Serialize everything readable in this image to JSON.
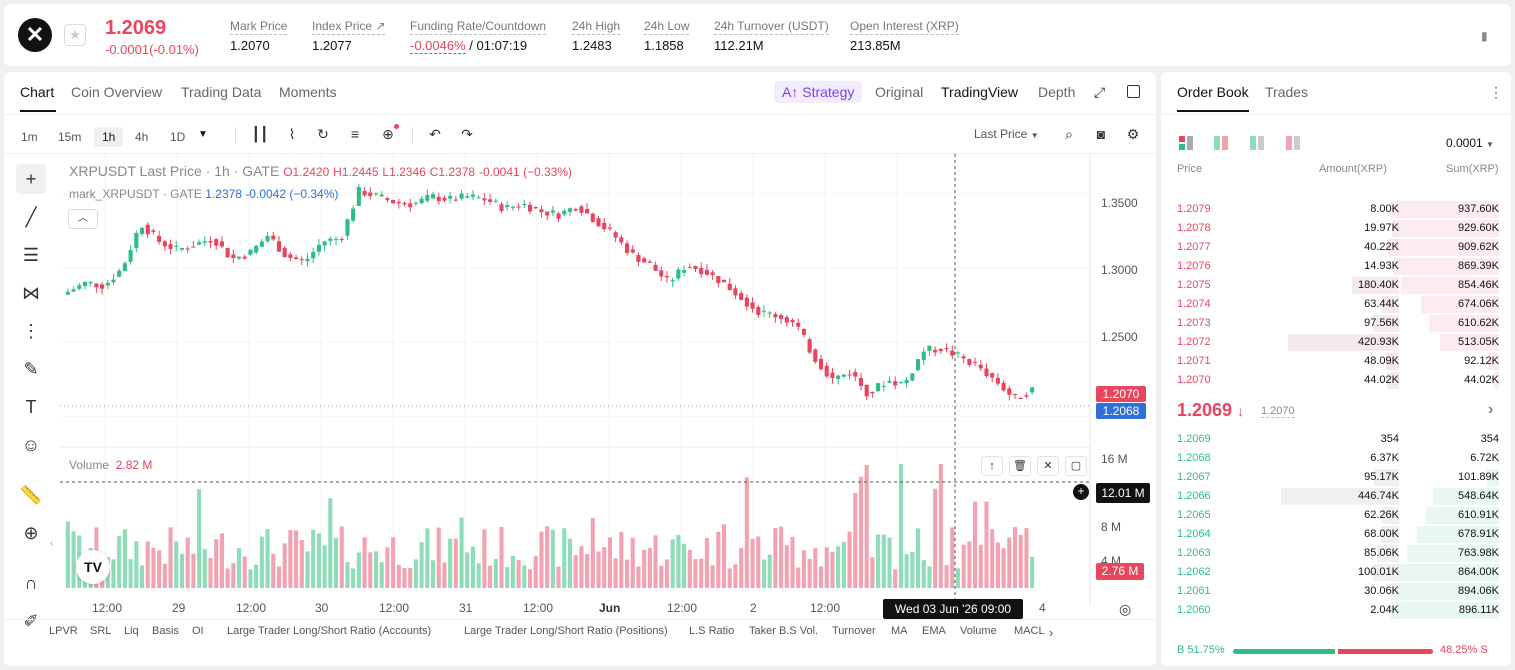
{
  "header": {
    "logo": "x-icon",
    "price": "1.2069",
    "change": "-0.0001(-0.01%)",
    "stats": [
      {
        "label": "Mark Price",
        "value": "1.2070"
      },
      {
        "label": "Index Price ↗",
        "value": "1.2077"
      },
      {
        "label": "Funding Rate/Countdown",
        "value_a": "-0.0046%",
        "value_b": "/ 01:07:19"
      },
      {
        "label": "24h High",
        "value": "1.2483"
      },
      {
        "label": "24h Low",
        "value": "1.1858"
      },
      {
        "label": "24h Turnover (USDT)",
        "value": "112.21M"
      },
      {
        "label": "Open Interest (XRP)",
        "value": "213.85M"
      }
    ]
  },
  "chart_tabs": {
    "left": [
      "Chart",
      "Coin Overview",
      "Trading Data",
      "Moments"
    ],
    "strategy": "Strategy",
    "right": [
      "Original",
      "TradingView",
      "Depth"
    ]
  },
  "timeframes": [
    "1m",
    "15m",
    "1h",
    "4h",
    "1D"
  ],
  "price_type": "Last Price",
  "legend": {
    "symbol": "XRPUSDT Last Price · 1h · GATE",
    "o": "O1.2420",
    "h": "H1.2445",
    "l": "L1.2346",
    "c": "C1.2378",
    "chg": "-0.0041 (−0.33%)",
    "mark_label": "mark_XRPUSDT · GATE",
    "mark_value": "1.2378",
    "mark_chg": "-0.0042 (−0.34%)"
  },
  "price_axis": [
    "1.3500",
    "1.3000",
    "1.2500"
  ],
  "price_tags": {
    "last": "1.2070",
    "mark": "1.2068"
  },
  "volume": {
    "label": "Volume",
    "value": "2.82 M",
    "axis": [
      "16 M",
      "8 M",
      "4 M"
    ],
    "crosshair_value": "12.01 M",
    "last_tag": "2.76 M"
  },
  "time_axis": [
    "12:00",
    "29",
    "12:00",
    "30",
    "12:00",
    "31",
    "12:00",
    "Jun",
    "12:00",
    "2",
    "12:00",
    "4"
  ],
  "crosshair_time": "Wed 03 Jun '26   09:00",
  "indicators": [
    "LPVR",
    "SRL",
    "Liq",
    "Basis",
    "OI",
    "Large Trader Long/Short Ratio (Accounts)",
    "Large Trader Long/Short Ratio (Positions)",
    "L.S Ratio",
    "Taker B.S Vol.",
    "Turnover",
    "MA",
    "EMA",
    "Volume",
    "MACL"
  ],
  "chart_data": {
    "type": "candlestick",
    "series": [
      {
        "name": "XRPUSDT",
        "approx_closes": [
          1.284,
          1.29,
          1.288,
          1.3,
          1.33,
          1.318,
          1.312,
          1.316,
          1.32,
          1.306,
          1.31,
          1.322,
          1.308,
          1.304,
          1.318,
          1.32,
          1.352,
          1.348,
          1.344,
          1.343,
          1.348,
          1.346,
          1.348,
          1.346,
          1.34,
          1.343,
          1.338,
          1.336,
          1.342,
          1.332,
          1.322,
          1.309,
          1.302,
          1.29,
          1.302,
          1.298,
          1.29,
          1.28,
          1.27,
          1.268,
          1.262,
          1.24,
          1.225,
          1.23,
          1.215,
          1.224,
          1.222,
          1.244,
          1.246,
          1.24,
          1.234,
          1.224,
          1.212,
          1.218
        ]
      }
    ],
    "ylim": [
      1.18,
      1.37
    ],
    "grid": true
  },
  "orderbook": {
    "tabs": [
      "Order Book",
      "Trades"
    ],
    "precision": "0.0001",
    "columns": [
      "Price",
      "Amount(XRP)",
      "Sum(XRP)"
    ],
    "asks": [
      {
        "price": "1.2079",
        "amount": "8.00K",
        "sum": "937.60K",
        "depth": 1.0,
        "amt": 0.02
      },
      {
        "price": "1.2078",
        "amount": "19.97K",
        "sum": "929.60K",
        "depth": 0.99,
        "amt": 0.05
      },
      {
        "price": "1.2077",
        "amount": "40.22K",
        "sum": "909.62K",
        "depth": 0.97,
        "amt": 0.09
      },
      {
        "price": "1.2076",
        "amount": "14.93K",
        "sum": "869.39K",
        "depth": 0.93,
        "amt": 0.04
      },
      {
        "price": "1.2075",
        "amount": "180.40K",
        "sum": "854.46K",
        "depth": 0.91,
        "amt": 0.4
      },
      {
        "price": "1.2074",
        "amount": "63.44K",
        "sum": "674.06K",
        "depth": 0.72,
        "amt": 0.14
      },
      {
        "price": "1.2073",
        "amount": "97.56K",
        "sum": "610.62K",
        "depth": 0.65,
        "amt": 0.22
      },
      {
        "price": "1.2072",
        "amount": "420.93K",
        "sum": "513.05K",
        "depth": 0.55,
        "amt": 0.94
      },
      {
        "price": "1.2071",
        "amount": "48.09K",
        "sum": "92.12K",
        "depth": 0.1,
        "amt": 0.11
      },
      {
        "price": "1.2070",
        "amount": "44.02K",
        "sum": "44.02K",
        "depth": 0.05,
        "amt": 0.1
      }
    ],
    "mid": {
      "price": "1.2069",
      "mark": "1.2070"
    },
    "bids": [
      {
        "price": "1.2069",
        "amount": "354",
        "sum": "354",
        "depth": 0.0,
        "amt": 0.0
      },
      {
        "price": "1.2068",
        "amount": "6.37K",
        "sum": "6.72K",
        "depth": 0.01,
        "amt": 0.01
      },
      {
        "price": "1.2067",
        "amount": "95.17K",
        "sum": "101.89K",
        "depth": 0.11,
        "amt": 0.21
      },
      {
        "price": "1.2066",
        "amount": "446.74K",
        "sum": "548.64K",
        "depth": 0.61,
        "amt": 1.0
      },
      {
        "price": "1.2065",
        "amount": "62.26K",
        "sum": "610.91K",
        "depth": 0.68,
        "amt": 0.14
      },
      {
        "price": "1.2064",
        "amount": "68.00K",
        "sum": "678.91K",
        "depth": 0.76,
        "amt": 0.15
      },
      {
        "price": "1.2063",
        "amount": "85.06K",
        "sum": "763.98K",
        "depth": 0.85,
        "amt": 0.19
      },
      {
        "price": "1.2062",
        "amount": "100.01K",
        "sum": "864.00K",
        "depth": 0.96,
        "amt": 0.22
      },
      {
        "price": "1.2061",
        "amount": "30.06K",
        "sum": "894.06K",
        "depth": 0.99,
        "amt": 0.07
      },
      {
        "price": "1.2060",
        "amount": "2.04K",
        "sum": "896.11K",
        "depth": 1.0,
        "amt": 0.01
      }
    ],
    "buy_ratio": "B 51.75%",
    "sell_ratio": "48.25% S",
    "buy_fraction": 0.5175
  },
  "colors": {
    "up": "#2ebd85",
    "down": "#e8455f",
    "up_light": "#8fdcb8",
    "down_light": "#f2a3b1",
    "mark_blue": "#2f6fd6"
  }
}
